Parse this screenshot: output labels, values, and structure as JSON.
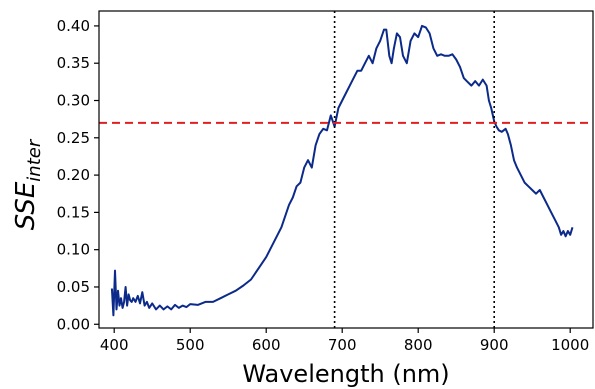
{
  "chart_data": {
    "type": "line",
    "xlabel": "Wavelength (nm)",
    "ylabel": "SSE",
    "ylabel_subscript": "inter",
    "xlim": [
      380,
      1030
    ],
    "ylim": [
      -0.005,
      0.42
    ],
    "xticks": [
      400,
      500,
      600,
      700,
      800,
      900,
      1000
    ],
    "yticks": [
      0.0,
      0.05,
      0.1,
      0.15,
      0.2,
      0.25,
      0.3,
      0.35,
      0.4
    ],
    "ytick_labels": [
      "0.00",
      "0.05",
      "0.10",
      "0.15",
      "0.20",
      "0.25",
      "0.30",
      "0.35",
      "0.40"
    ],
    "grid": false,
    "series": [
      {
        "color": "#0b2a8a",
        "x": [
          397,
          399,
          401,
          403,
          405,
          407,
          409,
          411,
          413,
          415,
          417,
          419,
          421,
          423,
          425,
          428,
          431,
          434,
          437,
          440,
          443,
          446,
          450,
          455,
          460,
          465,
          470,
          475,
          480,
          485,
          490,
          495,
          500,
          510,
          520,
          530,
          540,
          550,
          560,
          570,
          580,
          590,
          600,
          610,
          620,
          630,
          635,
          640,
          645,
          650,
          655,
          660,
          665,
          670,
          675,
          680,
          685,
          690,
          695,
          700,
          705,
          710,
          715,
          720,
          725,
          730,
          735,
          740,
          745,
          750,
          755,
          758,
          762,
          765,
          768,
          772,
          776,
          780,
          785,
          790,
          795,
          800,
          805,
          810,
          815,
          820,
          825,
          830,
          835,
          840,
          845,
          850,
          855,
          860,
          865,
          870,
          875,
          880,
          885,
          890,
          893,
          896,
          900,
          903,
          906,
          910,
          915,
          918,
          922,
          926,
          930,
          935,
          940,
          945,
          950,
          955,
          960,
          965,
          970,
          975,
          980,
          985,
          988,
          991,
          994,
          997,
          1000,
          1003
        ],
        "y": [
          0.048,
          0.012,
          0.072,
          0.02,
          0.045,
          0.025,
          0.035,
          0.022,
          0.03,
          0.05,
          0.025,
          0.04,
          0.032,
          0.03,
          0.035,
          0.03,
          0.038,
          0.028,
          0.043,
          0.025,
          0.03,
          0.022,
          0.028,
          0.02,
          0.025,
          0.02,
          0.024,
          0.02,
          0.026,
          0.022,
          0.025,
          0.023,
          0.027,
          0.026,
          0.03,
          0.03,
          0.035,
          0.04,
          0.045,
          0.052,
          0.06,
          0.075,
          0.09,
          0.11,
          0.13,
          0.16,
          0.17,
          0.185,
          0.19,
          0.21,
          0.22,
          0.21,
          0.24,
          0.255,
          0.262,
          0.26,
          0.28,
          0.265,
          0.29,
          0.3,
          0.31,
          0.32,
          0.33,
          0.34,
          0.34,
          0.35,
          0.36,
          0.35,
          0.37,
          0.38,
          0.395,
          0.395,
          0.36,
          0.35,
          0.37,
          0.39,
          0.385,
          0.36,
          0.35,
          0.38,
          0.39,
          0.385,
          0.4,
          0.398,
          0.39,
          0.37,
          0.36,
          0.362,
          0.36,
          0.36,
          0.362,
          0.355,
          0.345,
          0.33,
          0.325,
          0.32,
          0.326,
          0.32,
          0.328,
          0.32,
          0.3,
          0.29,
          0.272,
          0.265,
          0.26,
          0.258,
          0.262,
          0.255,
          0.24,
          0.22,
          0.21,
          0.2,
          0.19,
          0.185,
          0.18,
          0.175,
          0.18,
          0.17,
          0.16,
          0.15,
          0.14,
          0.13,
          0.12,
          0.125,
          0.118,
          0.125,
          0.12,
          0.13
        ]
      }
    ],
    "reference_lines": {
      "horizontal": {
        "y": 0.27,
        "color": "#e02020",
        "style": "dashed"
      },
      "vertical": [
        {
          "x": 690,
          "color": "#000000",
          "style": "dotted"
        },
        {
          "x": 900,
          "color": "#000000",
          "style": "dotted"
        }
      ]
    }
  }
}
